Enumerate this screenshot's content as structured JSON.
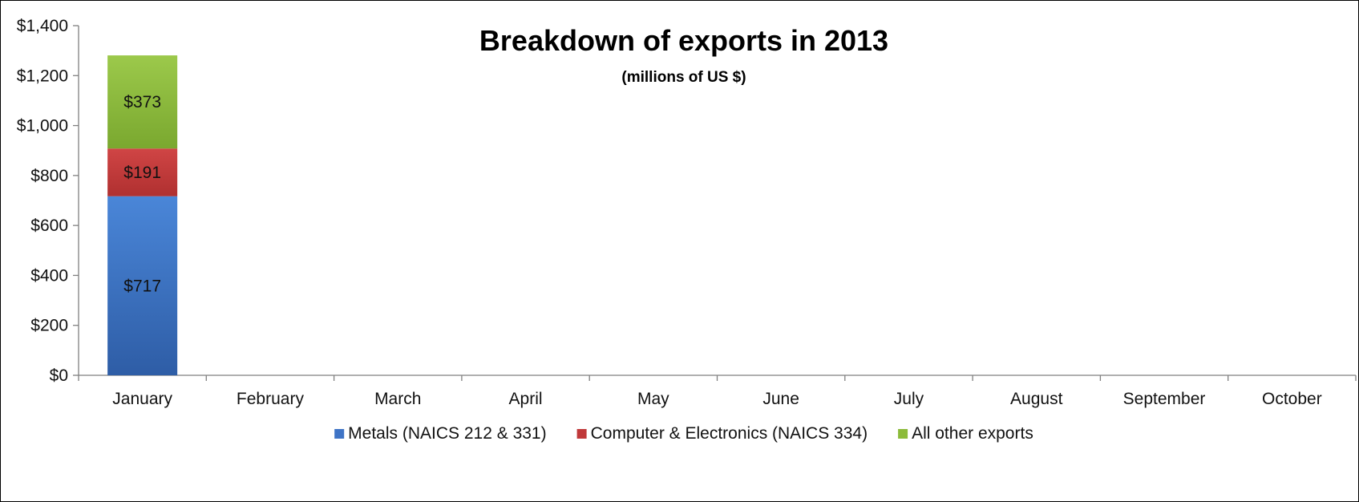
{
  "chart_data": {
    "type": "bar",
    "stacked": true,
    "title": "Breakdown of exports in 2013",
    "subtitle": "(millions of US $)",
    "categories": [
      "January",
      "February",
      "March",
      "April",
      "May",
      "June",
      "July",
      "August",
      "September",
      "October"
    ],
    "series": [
      {
        "name": "Metals (NAICS 212 & 331)",
        "color": "#3f74c6",
        "values": [
          717,
          null,
          null,
          null,
          null,
          null,
          null,
          null,
          null,
          null
        ],
        "labels": [
          "$717"
        ]
      },
      {
        "name": "Computer & Electronics (NAICS 334)",
        "color": "#c0393a",
        "values": [
          191,
          null,
          null,
          null,
          null,
          null,
          null,
          null,
          null,
          null
        ],
        "labels": [
          "$191"
        ]
      },
      {
        "name": "All other exports",
        "color": "#8cbb3a",
        "values": [
          373,
          null,
          null,
          null,
          null,
          null,
          null,
          null,
          null,
          null
        ],
        "labels": [
          "$373"
        ]
      }
    ],
    "ylim": [
      0,
      1400
    ],
    "yticks": [
      0,
      200,
      400,
      600,
      800,
      1000,
      1200,
      1400
    ],
    "ytick_labels": [
      "$0",
      "$200",
      "$400",
      "$600",
      "$800",
      "$1,000",
      "$1,200",
      "$1,400"
    ],
    "xlabel": "",
    "ylabel": "",
    "grid": false,
    "legend": "bottom"
  }
}
